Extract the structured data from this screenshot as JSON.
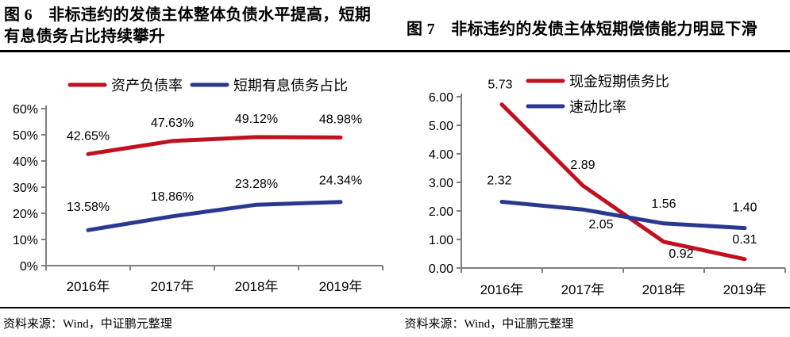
{
  "figures": [
    {
      "label": "图 6",
      "title": "图 6　非标违约的发债主体整体负债水平提高，短期有息债务占比持续攀升",
      "source": "资料来源：Wind，中证鹏元整理"
    },
    {
      "label": "图 7",
      "title": "图 7　非标违约的发债主体短期偿债能力明显下滑",
      "source": "资料来源：Wind，中证鹏元整理"
    }
  ],
  "colors": {
    "series_red": "#c2101f",
    "series_blue": "#2b3890",
    "axis_gray": "#7f7f7f",
    "divider_black": "#000000"
  },
  "chart_data": [
    {
      "type": "line",
      "title": "图 6 非标违约的发债主体整体负债水平提高，短期有息债务占比持续攀升",
      "categories": [
        "2016年",
        "2017年",
        "2018年",
        "2019年"
      ],
      "series": [
        {
          "name": "资产负债率",
          "color": "#c2101f",
          "values": [
            42.65,
            47.63,
            49.12,
            48.98
          ],
          "labels": [
            "42.65%",
            "47.63%",
            "49.12%",
            "48.98%"
          ],
          "label_offsets": [
            [
              0,
              -18
            ],
            [
              0,
              -18
            ],
            [
              0,
              -18
            ],
            [
              0,
              -18
            ]
          ]
        },
        {
          "name": "短期有息债务占比",
          "color": "#2b3890",
          "values": [
            13.58,
            18.86,
            23.28,
            24.34
          ],
          "labels": [
            "13.58%",
            "18.86%",
            "23.28%",
            "24.34%"
          ],
          "label_offsets": [
            [
              0,
              -24
            ],
            [
              0,
              -20
            ],
            [
              0,
              -21
            ],
            [
              0,
              -22
            ]
          ]
        }
      ],
      "ylim": [
        0,
        60
      ],
      "ytick_values": [
        0,
        10,
        20,
        30,
        40,
        50,
        60
      ],
      "ytick_labels": [
        "0%",
        "10%",
        "20%",
        "30%",
        "40%",
        "50%",
        "60%"
      ],
      "xlabel": "",
      "ylabel": "",
      "grid": false,
      "legend_position": "top-center-horizontal",
      "source": "资料来源：Wind，中证鹏元整理"
    },
    {
      "type": "line",
      "title": "图 7 非标违约的发债主体短期偿债能力明显下滑",
      "categories": [
        "2016年",
        "2017年",
        "2018年",
        "2019年"
      ],
      "series": [
        {
          "name": "现金短期债务比",
          "color": "#c2101f",
          "values": [
            5.73,
            2.89,
            0.92,
            0.31
          ],
          "labels": [
            "5.73",
            "2.89",
            "0.92",
            "0.31"
          ],
          "label_offsets": [
            [
              -2,
              -20
            ],
            [
              0,
              -21
            ],
            [
              22,
              20
            ],
            [
              0,
              -20
            ]
          ]
        },
        {
          "name": "速动比率",
          "color": "#2b3890",
          "values": [
            2.32,
            2.05,
            1.56,
            1.4
          ],
          "labels": [
            "2.32",
            "2.05",
            "1.56",
            "1.40"
          ],
          "label_offsets": [
            [
              -3,
              -22
            ],
            [
              23,
              24
            ],
            [
              0,
              -20
            ],
            [
              0,
              -21
            ]
          ]
        }
      ],
      "ylim": [
        0,
        6
      ],
      "ytick_values": [
        0,
        1,
        2,
        3,
        4,
        5,
        6
      ],
      "ytick_labels": [
        "0.00",
        "1.00",
        "2.00",
        "3.00",
        "4.00",
        "5.00",
        "6.00"
      ],
      "xlabel": "",
      "ylabel": "",
      "grid": false,
      "legend_position": "top-right-stacked",
      "source": "资料来源：Wind，中证鹏元整理"
    }
  ]
}
